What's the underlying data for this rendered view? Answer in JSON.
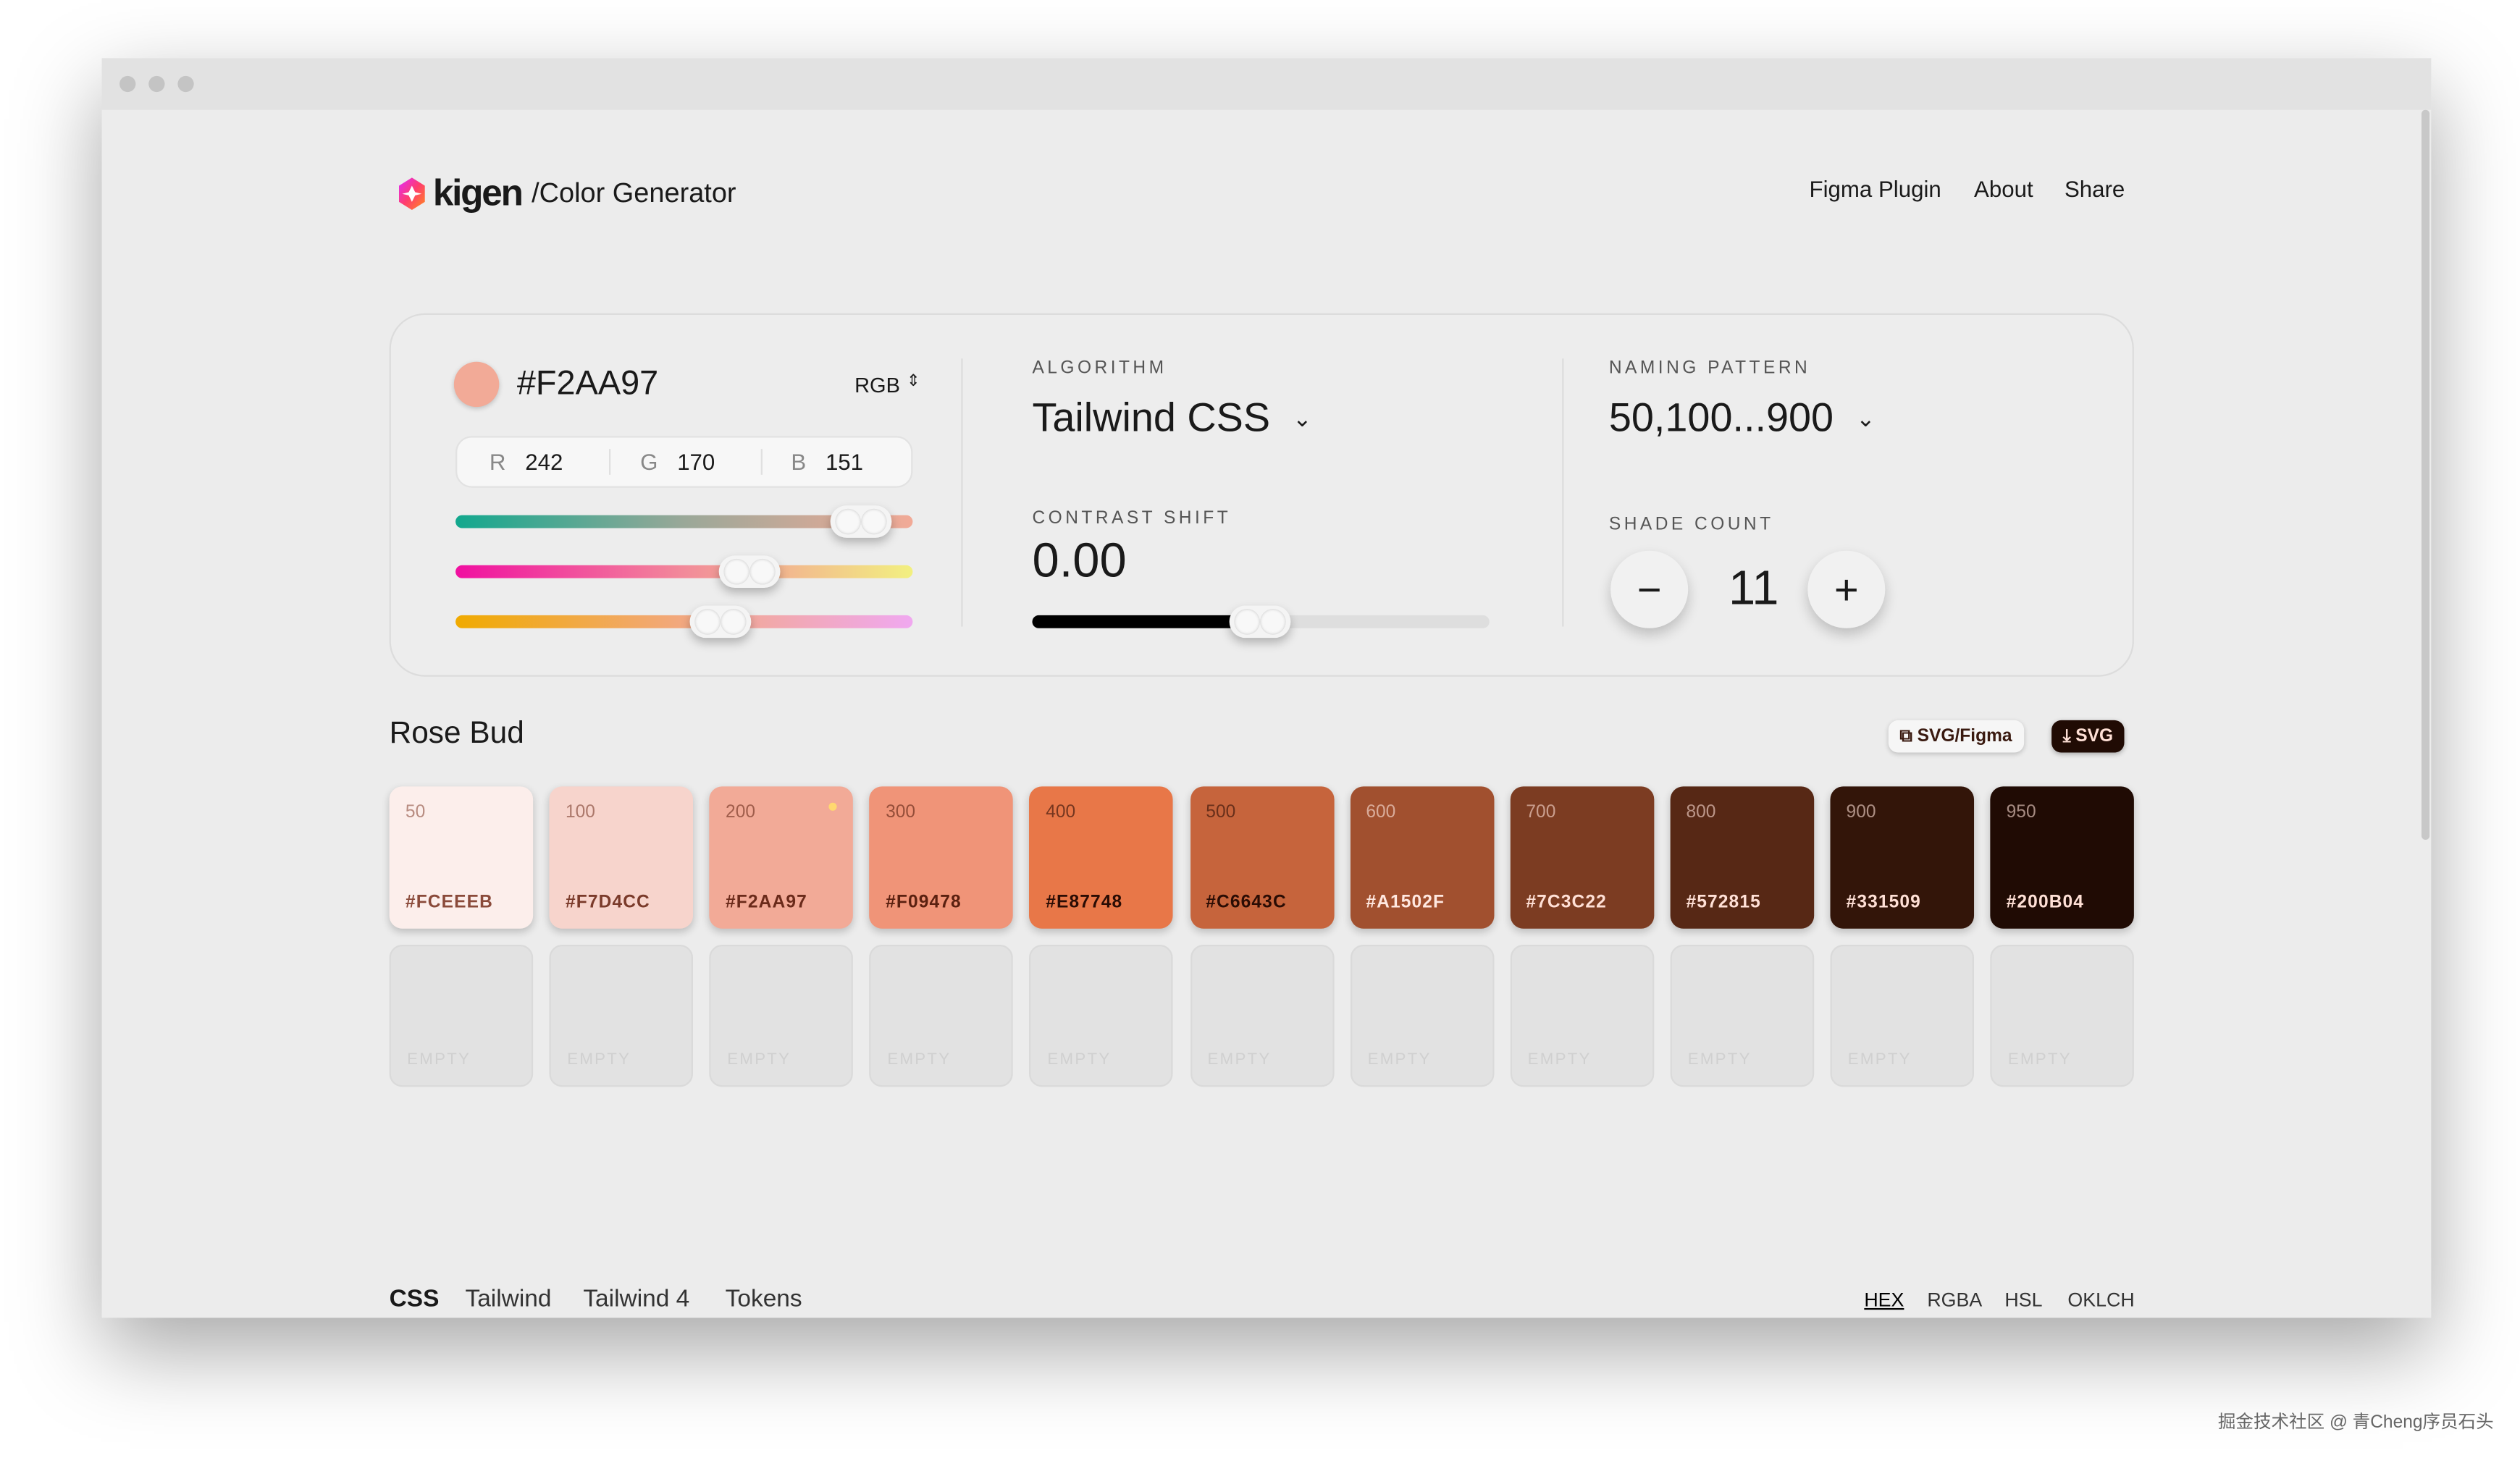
{
  "header": {
    "brand": "kigen",
    "subtitle": "/Color Generator",
    "nav": [
      "Figma Plugin",
      "About",
      "Share"
    ]
  },
  "color": {
    "hex": "#F2AA97",
    "mode": "RGB",
    "r_label": "R",
    "r": "242",
    "g_label": "G",
    "g": "170",
    "b_label": "B",
    "b": "151",
    "sliders": [
      {
        "channel": "R",
        "value": 242,
        "max": 255
      },
      {
        "channel": "G",
        "value": 170,
        "max": 255
      },
      {
        "channel": "B",
        "value": 151,
        "max": 255
      }
    ]
  },
  "algorithm": {
    "label": "ALGORITHM",
    "value": "Tailwind CSS"
  },
  "contrast": {
    "label": "CONTRAST SHIFT",
    "value": "0.00",
    "slider_fraction": 0.5
  },
  "naming": {
    "label": "NAMING PATTERN",
    "value": "50,100...900"
  },
  "shades": {
    "label": "SHADE COUNT",
    "value": "11",
    "minus": "−",
    "plus": "+"
  },
  "palette": {
    "name": "Rose Bud",
    "svg_figma": "SVG/Figma",
    "svg": "SVG",
    "selected": "200",
    "swatches": [
      {
        "step": "50",
        "hex": "#FCEEEB",
        "text": "#8a4a3a"
      },
      {
        "step": "100",
        "hex": "#F7D4CC",
        "text": "#7a3a2a"
      },
      {
        "step": "200",
        "hex": "#F2AA97",
        "text": "#6a2a1a"
      },
      {
        "step": "300",
        "hex": "#F09478",
        "text": "#5a2010"
      },
      {
        "step": "400",
        "hex": "#E87748",
        "text": "#2a0c04"
      },
      {
        "step": "500",
        "hex": "#C6643C",
        "text": "#2a0c04"
      },
      {
        "step": "600",
        "hex": "#A1502F",
        "text": "#ffe8e0"
      },
      {
        "step": "700",
        "hex": "#7C3C22",
        "text": "#ffe0d6"
      },
      {
        "step": "800",
        "hex": "#572815",
        "text": "#ffe0d6"
      },
      {
        "step": "900",
        "hex": "#331509",
        "text": "#ffe0d6"
      },
      {
        "step": "950",
        "hex": "#200B04",
        "text": "#ffe0d6"
      }
    ],
    "empty_label": "EMPTY"
  },
  "footer": {
    "tabs": [
      "CSS",
      "Tailwind",
      "Tailwind 4",
      "Tokens"
    ],
    "formats": [
      "HEX",
      "RGBA",
      "HSL",
      "OKLCH"
    ],
    "active_format": "HEX"
  },
  "watermark": "掘金技术社区 @ 青Cheng序员石头"
}
